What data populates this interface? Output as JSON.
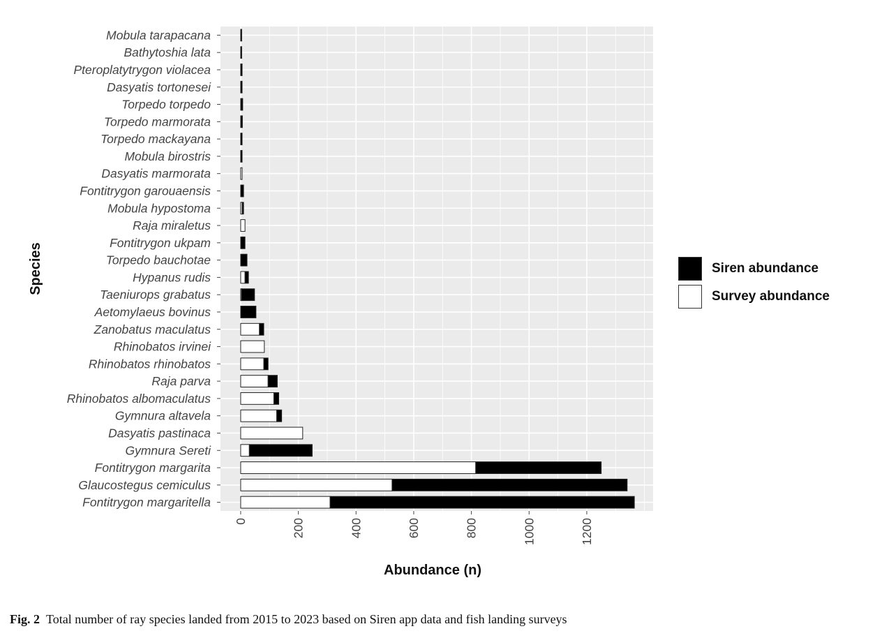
{
  "chart_data": {
    "type": "bar",
    "orientation": "horizontal",
    "stacked": true,
    "xlabel": "Abundance (n)",
    "ylabel": "Species",
    "xlim": [
      -70,
      1430
    ],
    "xticks": [
      0,
      200,
      400,
      600,
      800,
      1000,
      1200
    ],
    "grid": true,
    "legend_position": "right",
    "categories": [
      "Mobula tarapacana",
      "Bathytoshia lata",
      "Pteroplatytrygon violacea",
      "Dasyatis tortonesei",
      "Torpedo torpedo",
      "Torpedo marmorata",
      "Torpedo mackayana",
      "Mobula birostris",
      "Dasyatis marmorata",
      "Fontitrygon garouaensis",
      "Mobula hypostoma",
      "Raja miraletus",
      "Fontitrygon ukpam",
      "Torpedo bauchotae",
      "Hypanus rudis",
      "Taeniurops grabatus",
      "Aetomylaeus bovinus",
      "Zanobatus maculatus",
      "Rhinobatos irvinei",
      "Rhinobatos rhinobatos",
      "Raja parva",
      "Rhinobatos albomaculatus",
      "Gymnura altavela",
      "Dasyatis pastinaca",
      "Gymnura Sereti",
      "Fontitrygon margarita",
      "Glaucostegus cemiculus",
      "Fontitrygon margaritella"
    ],
    "series": [
      {
        "name": "Survey abundance",
        "color": "#ffffff",
        "values": [
          0,
          0,
          0,
          0,
          0,
          0,
          0,
          0,
          5,
          0,
          5,
          15,
          0,
          0,
          15,
          3,
          0,
          65,
          82,
          80,
          95,
          115,
          125,
          215,
          30,
          815,
          525,
          310
        ]
      },
      {
        "name": "Siren abundance",
        "color": "#000000",
        "values": [
          3,
          3,
          5,
          5,
          7,
          6,
          5,
          5,
          0,
          10,
          5,
          0,
          15,
          22,
          12,
          45,
          53,
          15,
          0,
          15,
          32,
          17,
          17,
          0,
          218,
          435,
          815,
          1055
        ]
      }
    ]
  },
  "legend": {
    "items": [
      {
        "label": "Siren abundance",
        "color": "#000000"
      },
      {
        "label": "Survey abundance",
        "color": "#ffffff"
      }
    ]
  },
  "caption": {
    "label": "Fig. 2",
    "text": "Total number of ray species landed from 2015 to 2023 based on Siren app data and fish landing surveys"
  }
}
